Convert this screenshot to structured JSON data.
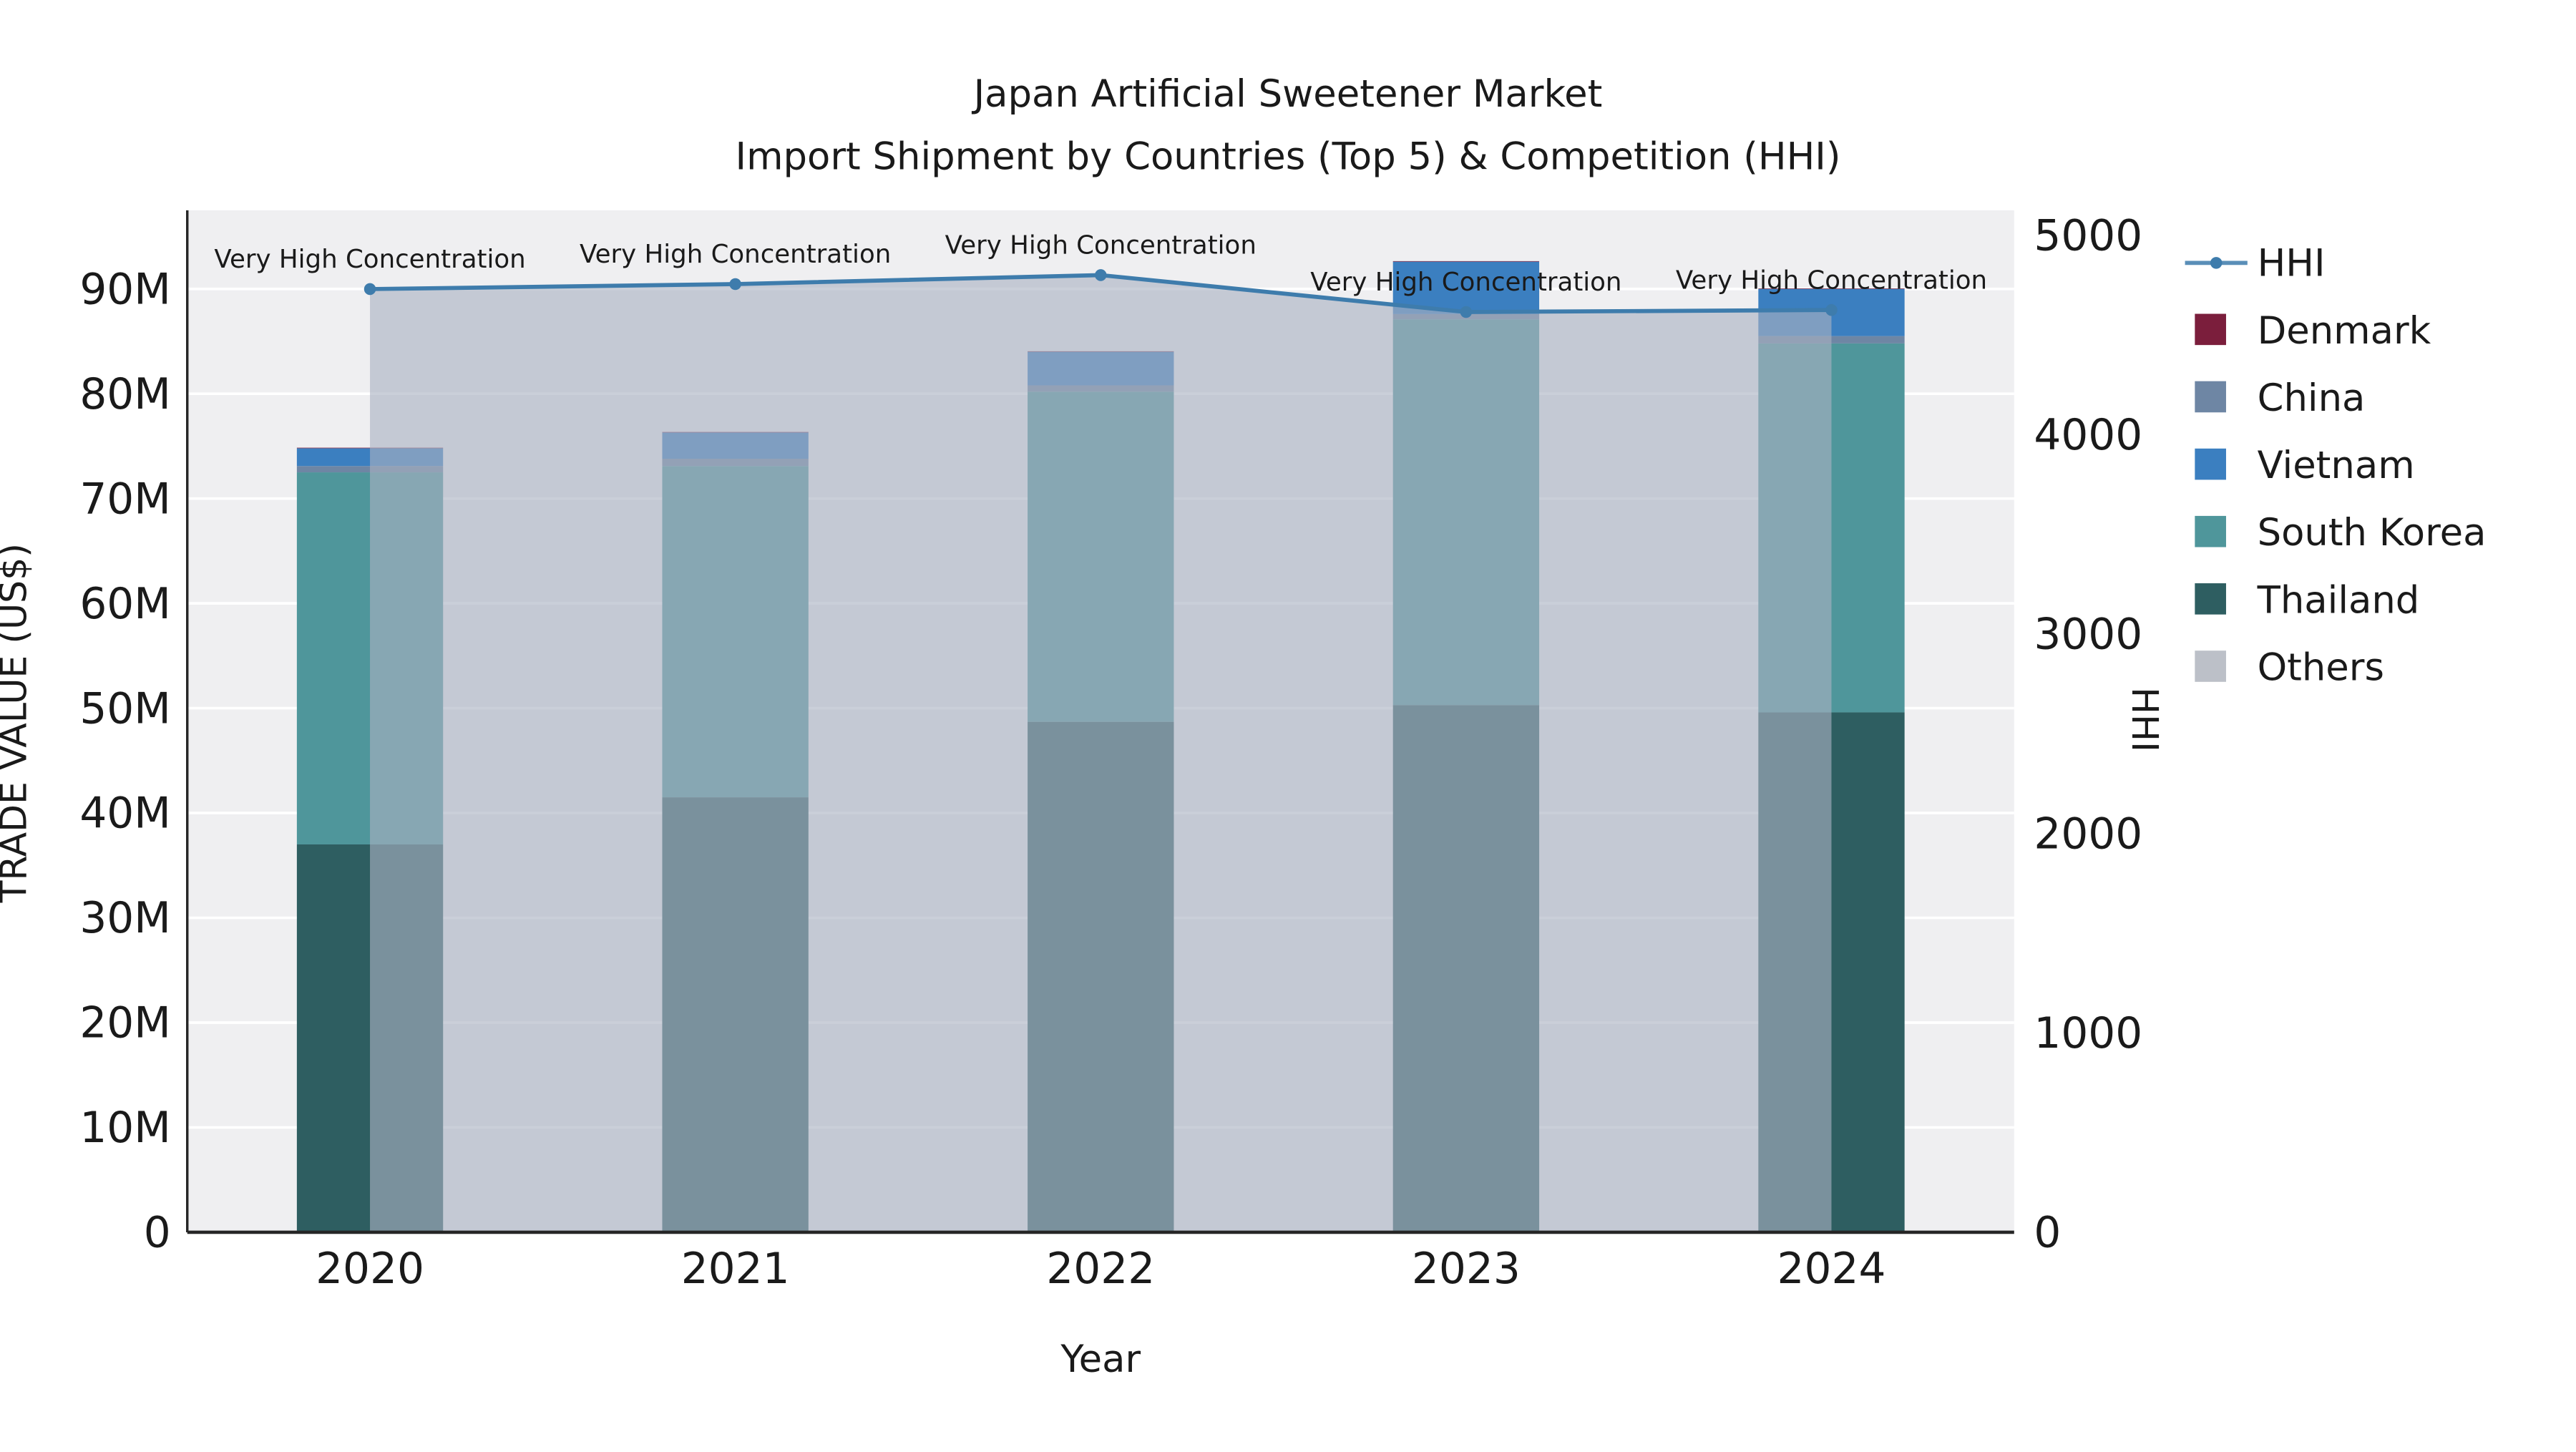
{
  "figure": {
    "title_line1": "Japan Artificial Sweetener Market",
    "title_line2": "Import Shipment by Countries (Top 5) & Competition (HHI)"
  },
  "axes": {
    "x_title": "Year",
    "y_left_title": "TRADE VALUE (US$)",
    "y_right_title": "HHI"
  },
  "legend": {
    "items": [
      {
        "label": "HHI",
        "type": "line",
        "color": "#3e7cac"
      },
      {
        "label": "Denmark",
        "type": "swatch",
        "color": "#7b1e3c"
      },
      {
        "label": "China",
        "type": "swatch",
        "color": "#6e86a4"
      },
      {
        "label": "Vietnam",
        "type": "swatch",
        "color": "#3b7fc0"
      },
      {
        "label": "South Korea",
        "type": "swatch",
        "color": "#4f969b"
      },
      {
        "label": "Thailand",
        "type": "swatch",
        "color": "#2e5e61"
      },
      {
        "label": "Others",
        "type": "swatch",
        "color": "#bcc0c8"
      }
    ]
  },
  "chart_data": {
    "type": "bar",
    "subtype": "stacked-bars-with-line-and-area-overlay",
    "title": "Japan Artificial Sweetener Market",
    "subtitle": "Import Shipment by Countries (Top 5) & Competition (HHI)",
    "xlabel": "Year",
    "ylabel_left": "TRADE VALUE (US$)",
    "ylabel_right": "HHI",
    "categories": [
      "2020",
      "2021",
      "2022",
      "2023",
      "2024"
    ],
    "bar_unit": "million US$",
    "series": [
      {
        "name": "Thailand",
        "color": "#2e5e61",
        "values": [
          37.0,
          41.5,
          48.7,
          50.3,
          49.6
        ]
      },
      {
        "name": "South Korea",
        "color": "#4f969b",
        "values": [
          35.5,
          31.6,
          31.5,
          36.8,
          35.2
        ]
      },
      {
        "name": "China",
        "color": "#6e86a4",
        "values": [
          0.6,
          0.7,
          0.6,
          0.5,
          0.7
        ]
      },
      {
        "name": "Vietnam",
        "color": "#3b7fc0",
        "values": [
          1.7,
          2.5,
          3.2,
          5.0,
          4.5
        ]
      },
      {
        "name": "Denmark",
        "color": "#7b1e3c",
        "values": [
          0.05,
          0.05,
          0.05,
          0.05,
          0.05
        ]
      },
      {
        "name": "Others",
        "color": "#bcc0c8",
        "values": [
          0,
          0,
          0,
          0,
          0
        ]
      }
    ],
    "line_series": {
      "name": "HHI",
      "color": "#3e7cac",
      "area_fill": "rgba(170,178,193,0.62)",
      "values": [
        4730,
        4755,
        4800,
        4615,
        4625
      ]
    },
    "annotations": [
      {
        "category": "2020",
        "text": "Very High Concentration"
      },
      {
        "category": "2021",
        "text": "Very High Concentration"
      },
      {
        "category": "2022",
        "text": "Very High Concentration"
      },
      {
        "category": "2023",
        "text": "Very High Concentration"
      },
      {
        "category": "2024",
        "text": "Very High Concentration"
      }
    ],
    "y_left_ticks": {
      "labels": [
        "0",
        "10M",
        "20M",
        "30M",
        "40M",
        "50M",
        "60M",
        "70M",
        "80M",
        "90M"
      ],
      "values": [
        0,
        10,
        20,
        30,
        40,
        50,
        60,
        70,
        80,
        90
      ]
    },
    "y_right_ticks": {
      "labels": [
        "0",
        "1000",
        "2000",
        "3000",
        "4000",
        "5000"
      ],
      "values": [
        0,
        1000,
        2000,
        3000,
        4000,
        5000
      ]
    },
    "ylim_left": [
      0,
      97.5
    ],
    "ylim_right": [
      0,
      5125
    ],
    "grid": true,
    "legend_position": "right"
  }
}
